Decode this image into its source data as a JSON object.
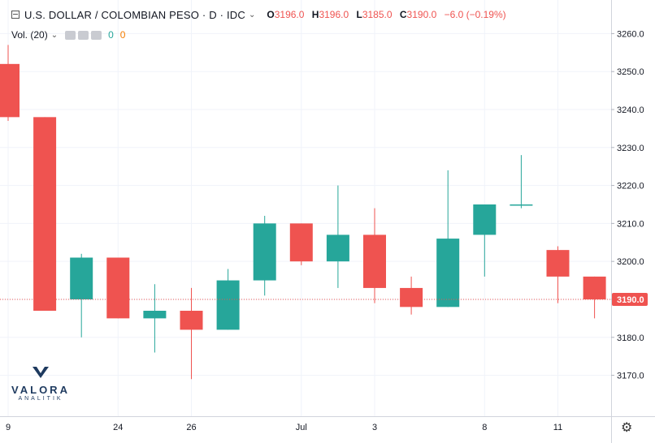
{
  "header": {
    "symbol": "U.S. DOLLAR / COLOMBIAN PESO · D · IDC",
    "open_label": "O",
    "open": "3196.0",
    "high_label": "H",
    "high": "3196.0",
    "low_label": "L",
    "low": "3185.0",
    "close_label": "C",
    "close": "3190.0",
    "change": "−6.0 (−0.19%)"
  },
  "volume": {
    "label": "Vol. (20)",
    "v1": "0",
    "v2": "0"
  },
  "logo": {
    "word": "VALORA",
    "sub": "ANALITIK"
  },
  "colors": {
    "up": "#26a69a",
    "down": "#ef5350",
    "grid": "#f0f3fa",
    "axis_text": "#131722"
  },
  "chart_data": {
    "type": "candlestick",
    "ylim": [
      3162,
      3265
    ],
    "y_ticks": [
      3170,
      3180,
      3190,
      3200,
      3210,
      3220,
      3230,
      3240,
      3250,
      3260
    ],
    "x_tick_labels": [
      {
        "index": 0,
        "label": "9"
      },
      {
        "index": 3,
        "label": "24"
      },
      {
        "index": 5,
        "label": "26"
      },
      {
        "index": 8,
        "label": "Jul"
      },
      {
        "index": 10,
        "label": "3"
      },
      {
        "index": 13,
        "label": "8"
      },
      {
        "index": 15,
        "label": "11"
      }
    ],
    "last_price": "3190.0",
    "last_price_value": 3190,
    "candles": [
      {
        "o": 3252,
        "h": 3257,
        "l": 3237,
        "c": 3238
      },
      {
        "o": 3238,
        "h": 3238,
        "l": 3187,
        "c": 3187
      },
      {
        "o": 3190,
        "h": 3202,
        "l": 3180,
        "c": 3201
      },
      {
        "o": 3201,
        "h": 3201,
        "l": 3185,
        "c": 3185
      },
      {
        "o": 3185,
        "h": 3194,
        "l": 3176,
        "c": 3187
      },
      {
        "o": 3187,
        "h": 3193,
        "l": 3169,
        "c": 3182
      },
      {
        "o": 3182,
        "h": 3198,
        "l": 3182,
        "c": 3195
      },
      {
        "o": 3195,
        "h": 3212,
        "l": 3191,
        "c": 3210
      },
      {
        "o": 3210,
        "h": 3210,
        "l": 3199,
        "c": 3200
      },
      {
        "o": 3200,
        "h": 3220,
        "l": 3193,
        "c": 3207
      },
      {
        "o": 3207,
        "h": 3214,
        "l": 3189,
        "c": 3193
      },
      {
        "o": 3193,
        "h": 3196,
        "l": 3186,
        "c": 3188
      },
      {
        "o": 3188,
        "h": 3224,
        "l": 3188,
        "c": 3206
      },
      {
        "o": 3207,
        "h": 3215,
        "l": 3196,
        "c": 3215
      },
      {
        "o": 3215,
        "h": 3228,
        "l": 3214,
        "c": 3215
      },
      {
        "o": 3203,
        "h": 3204,
        "l": 3189,
        "c": 3196
      },
      {
        "o": 3196,
        "h": 3196,
        "l": 3185,
        "c": 3190
      }
    ]
  }
}
